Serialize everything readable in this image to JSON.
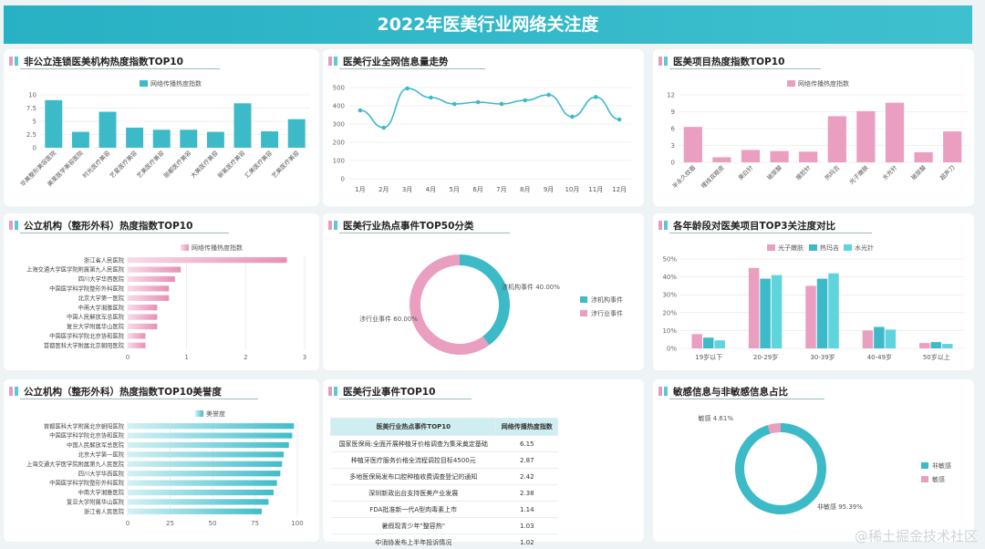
{
  "header": {
    "title": "2022年医美行业网络关注度"
  },
  "watermark": "@稀土掘金技术社区",
  "colors": {
    "teal": "#3dbac7",
    "pink": "#ea9fc0",
    "teal_light": "#5fd4dc"
  },
  "panels": {
    "p1": {
      "title": "非公立连锁医美机构热度指数TOP10"
    },
    "p2": {
      "title": "医美行业全网信息量走势"
    },
    "p3": {
      "title": "医美项目热度指数TOP10"
    },
    "p4": {
      "title": "公立机构（整形外科）热度指数TOP10"
    },
    "p5": {
      "title": "医美行业热点事件TOP50分类"
    },
    "p6": {
      "title": "各年龄段对医美项目TOP3关注度对比"
    },
    "p7": {
      "title": "公立机构（整形外科）热度指数TOP10美誉度"
    },
    "p8": {
      "title": "医美行业事件TOP10"
    },
    "p9": {
      "title": "敏感信息与非敏感信息占比"
    }
  },
  "chart_data": [
    {
      "id": "c1",
      "type": "bar",
      "legend": [
        "网络传播热度指数"
      ],
      "categories": [
        "华美整形美容医院",
        "美莱医学美容医院",
        "时光医疗美容",
        "艺星医疗美容",
        "艺美医疗美容",
        "丽都医疗美容",
        "大美医疗美容",
        "新氧医疗美容",
        "汇美医疗美容",
        "艺美医疗美容"
      ],
      "values": [
        9,
        3,
        6.8,
        3.8,
        3.4,
        3.4,
        3,
        8.4,
        3.1,
        5.4
      ],
      "ylim": [
        0,
        10
      ],
      "yticks": [
        "0",
        "2.5",
        "5",
        "7.5",
        "10"
      ]
    },
    {
      "id": "c2",
      "type": "line",
      "categories": [
        "1月",
        "2月",
        "3月",
        "4月",
        "5月",
        "6月",
        "7月",
        "8月",
        "9月",
        "10月",
        "11月",
        "12月"
      ],
      "values": [
        375,
        280,
        495,
        445,
        410,
        420,
        410,
        430,
        460,
        340,
        448,
        325
      ],
      "ylim": [
        0,
        500
      ],
      "yticks": [
        "0",
        "100",
        "200",
        "300",
        "400",
        "500"
      ]
    },
    {
      "id": "c3",
      "type": "bar",
      "legend": [
        "网络传播热度指数"
      ],
      "categories": [
        "半永久纹眉",
        "埋线双眼皮",
        "美白针",
        "玻尿酸",
        "瘦脸针",
        "热玛吉",
        "光子嫩肤",
        "水光针",
        "玻尿酸",
        "超声刀"
      ],
      "values": [
        6.3,
        0.9,
        2.2,
        2,
        1.9,
        8.2,
        9.1,
        10.6,
        1.8,
        5.5
      ],
      "ylim": [
        0,
        12
      ],
      "yticks": [
        "0",
        "3",
        "6",
        "9",
        "12"
      ]
    },
    {
      "id": "c4",
      "type": "hbar",
      "legend": [
        "网络传播热度指数"
      ],
      "categories": [
        "浙江省人民医院",
        "上海交通大学医学院附属第九人民医院",
        "四川大学华西医院",
        "中国医学科学院整形外科医院",
        "北京大学第一医院",
        "中南大学湘雅医院",
        "中国人民解放军总医院",
        "复旦大学附属华山医院",
        "中国医学科学院北京协和医院",
        "首都医科大学附属北京朝阳医院"
      ],
      "values": [
        2.7,
        0.9,
        0.8,
        0.7,
        0.7,
        0.5,
        0.5,
        0.5,
        0.3,
        0.3
      ],
      "xlim": [
        0,
        3
      ],
      "xticks": [
        "0",
        "1",
        "2",
        "3"
      ]
    },
    {
      "id": "c5",
      "type": "pie",
      "labels": [
        "涉机构事件",
        "涉行业事件"
      ],
      "values": [
        40,
        60
      ],
      "label_text": [
        "涉机构事件 40.00%",
        "涉行业事件 60.00%"
      ]
    },
    {
      "id": "c6",
      "type": "bar",
      "categories": [
        "19岁以下",
        "20-29岁",
        "30-39岁",
        "40-49岁",
        "50岁以上"
      ],
      "series": [
        {
          "name": "光子嫩肤",
          "values": [
            8,
            45,
            35,
            10,
            3
          ]
        },
        {
          "name": "热玛吉",
          "values": [
            6,
            39,
            39,
            12,
            3.5
          ]
        },
        {
          "name": "水光针",
          "values": [
            4.5,
            41,
            42,
            10.5,
            2.5
          ]
        }
      ],
      "ylim": [
        0,
        50
      ],
      "yticks": [
        "0%",
        "10%",
        "20%",
        "30%",
        "40%",
        "50%"
      ]
    },
    {
      "id": "c7",
      "type": "hbar",
      "legend": [
        "美誉度"
      ],
      "categories": [
        "首都医科大学附属北京朝阳医院",
        "中国医学科学院北京协和医院",
        "中国人民解放军总医院",
        "北京大学第一医院",
        "上海交通大学医学院附属第九人民医院",
        "四川大学华西医院",
        "中国医学科学院整形外科医院",
        "中南大学湘雅医院",
        "复旦大学附属华山医院",
        "浙江省人民医院"
      ],
      "values": [
        98,
        97,
        95,
        92,
        91,
        90,
        88,
        86,
        83,
        79
      ],
      "xlim": [
        0,
        100
      ],
      "xticks": [
        "0",
        "25",
        "50",
        "75",
        "100"
      ]
    },
    {
      "id": "c8",
      "type": "table",
      "columns": [
        "医美行业热点事件TOP10",
        "网络传播热度指数"
      ],
      "rows": [
        [
          "国家医保局:全面开展种植牙价格调查为集采奠定基础",
          "6.15"
        ],
        [
          "种植牙医疗服务价格全流程调控目标4500元",
          "2.87"
        ],
        [
          "多地医保局发布口腔种植收费调查登记的通知",
          "2.42"
        ],
        [
          "深圳新政出台支持医美产业发展",
          "2.38"
        ],
        [
          "FDA批准新一代A型肉毒素上市",
          "1.14"
        ],
        [
          "暑假现青少年\"整容热\"",
          "1.03"
        ],
        [
          "中消协发布上半年投诉情况",
          "1.02"
        ]
      ]
    },
    {
      "id": "c9",
      "type": "pie",
      "labels": [
        "非敏感",
        "敏感"
      ],
      "values": [
        95.39,
        4.61
      ],
      "label_text": [
        "非敏感 95.39%",
        "敏感 4.61%"
      ]
    }
  ]
}
